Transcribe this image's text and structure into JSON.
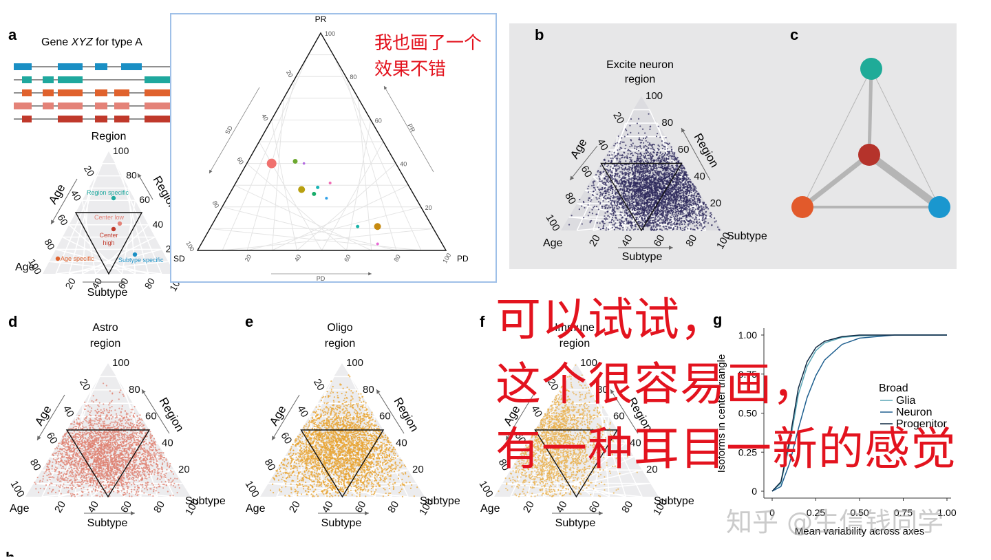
{
  "figure": {
    "panel_letters": {
      "a": "a",
      "b": "b",
      "c": "c",
      "d": "d",
      "e": "e",
      "f": "f",
      "g": "g",
      "h": "h"
    }
  },
  "panel_a": {
    "title_pre": "Gene ",
    "title_gene": "XYZ",
    "title_post": " for type A",
    "isoform_colors": [
      "#1a8fc4",
      "#1fa89e",
      "#e0622d",
      "#e48278",
      "#c0392b"
    ],
    "corner_top": "Region",
    "corner_left": "Age",
    "axis_left": "Age",
    "axis_right": "Region",
    "axis_bottom": "Subtype",
    "annotations": {
      "region_specific": "Region specific",
      "center_low": "Center low",
      "center_high_1": "Center",
      "center_high_2": "high",
      "age_specific": "Age specific",
      "subtype_specific": "Subtype specific"
    }
  },
  "overlay_panel": {
    "vertex_top": "PR",
    "vertex_left": "SD",
    "vertex_right": "PD",
    "axis_left": "SD",
    "axis_right": "PR",
    "axis_bottom": "PD",
    "annotation_line1": "我也画了一个",
    "annotation_line2": "效果不错"
  },
  "panel_b": {
    "title_line1": "Excite neuron",
    "title_line2": "region",
    "color": "#2e2a5c",
    "axis_left": "Age",
    "axis_right": "Region",
    "axis_bottom": "Subtype",
    "corner_right": "Subtype",
    "corner_left": "Age"
  },
  "panel_c": {
    "node_colors": {
      "top": "#1fab98",
      "center": "#b5332b",
      "left": "#e25a2b",
      "right": "#1a97cf"
    }
  },
  "panel_d": {
    "title_line1": "Astro",
    "title_line2": "region",
    "color": "#df8070",
    "axis_left": "Age",
    "axis_right": "Region",
    "axis_bottom": "Subtype",
    "corner_right": "Subtype",
    "corner_left": "Age"
  },
  "panel_e": {
    "title_line1": "Oligo",
    "title_line2": "region",
    "color": "#e8a12c",
    "axis_left": "Age",
    "axis_right": "Region",
    "axis_bottom": "Subtype",
    "corner_right": "Subtype",
    "corner_left": "Age"
  },
  "panel_f": {
    "title_line1": "Immune",
    "title_line2": "region",
    "color": "#eab04c",
    "axis_left": "Age",
    "axis_right": "Region",
    "axis_bottom": "Subtype",
    "corner_right": "Subtype",
    "corner_left": "Age"
  },
  "overlay_text": {
    "line1": "可以试试，",
    "line2": "这个很容易画，",
    "line3": "有一种耳目一新的感觉"
  },
  "watermark": "知乎 @生信钱同学",
  "chart_data": [
    {
      "panel": "overlay",
      "type": "scatter",
      "layout": "ternary",
      "axes": [
        "PR",
        "SD",
        "PD"
      ],
      "ticks": [
        20,
        40,
        60,
        80,
        100
      ],
      "points": [
        {
          "PR": 40,
          "SD": 50,
          "PD": 10,
          "color": "#f0716e",
          "size": 7
        },
        {
          "PR": 41,
          "SD": 40,
          "PD": 19,
          "color": "#6ca82f",
          "size": 3.5
        },
        {
          "PR": 40,
          "SD": 37,
          "PD": 23,
          "color": "#b36be0",
          "size": 1.8
        },
        {
          "PR": 28,
          "SD": 44,
          "PD": 28,
          "color": "#b8a010",
          "size": 5
        },
        {
          "PR": 26,
          "SD": 40,
          "PD": 34,
          "color": "#19ad6a",
          "size": 3
        },
        {
          "PR": 29,
          "SD": 37,
          "PD": 34,
          "color": "#19b5b5",
          "size": 2.5
        },
        {
          "PR": 31,
          "SD": 31,
          "PD": 38,
          "color": "#f06bb4",
          "size": 2
        },
        {
          "PR": 24,
          "SD": 36,
          "PD": 40,
          "color": "#2ea0e8",
          "size": 2
        },
        {
          "PR": 11,
          "SD": 30,
          "PD": 59,
          "color": "#19b3a8",
          "size": 2.5
        },
        {
          "PR": 11,
          "SD": 22,
          "PD": 67,
          "color": "#c68a10",
          "size": 5
        },
        {
          "PR": 3,
          "SD": 26,
          "PD": 71,
          "color": "#e86ad4",
          "size": 2
        }
      ]
    },
    {
      "panel": "g",
      "type": "line",
      "xlabel": "Mean variability across axes",
      "ylabel": "Isoforms in center triangle",
      "xlim": [
        0,
        1
      ],
      "ylim": [
        0,
        1
      ],
      "x_ticks": [
        "0",
        "0.25",
        "0.50",
        "0.75",
        "1.00"
      ],
      "y_ticks": [
        "0",
        "0.25",
        "0.50",
        "0.75",
        "1.00"
      ],
      "legend_title": "Broad",
      "legend_position": "right",
      "series": [
        {
          "name": "Glia",
          "color": "#5aa6b6",
          "x": [
            0,
            0.05,
            0.1,
            0.15,
            0.2,
            0.25,
            0.3,
            0.4,
            0.5,
            0.7,
            1.0
          ],
          "y": [
            0,
            0.05,
            0.3,
            0.62,
            0.8,
            0.9,
            0.95,
            0.985,
            0.995,
            1,
            1
          ]
        },
        {
          "name": "Neuron",
          "color": "#1e5f8f",
          "x": [
            0,
            0.05,
            0.1,
            0.15,
            0.2,
            0.25,
            0.3,
            0.4,
            0.5,
            0.7,
            1.0
          ],
          "y": [
            0,
            0.03,
            0.18,
            0.4,
            0.6,
            0.74,
            0.84,
            0.94,
            0.98,
            1,
            1
          ]
        },
        {
          "name": "Progenitor",
          "color": "#102a44",
          "x": [
            0,
            0.05,
            0.1,
            0.15,
            0.2,
            0.25,
            0.3,
            0.4,
            0.5,
            0.7,
            1.0
          ],
          "y": [
            0,
            0.06,
            0.33,
            0.66,
            0.83,
            0.92,
            0.96,
            0.99,
            1,
            1,
            1
          ]
        }
      ]
    }
  ]
}
